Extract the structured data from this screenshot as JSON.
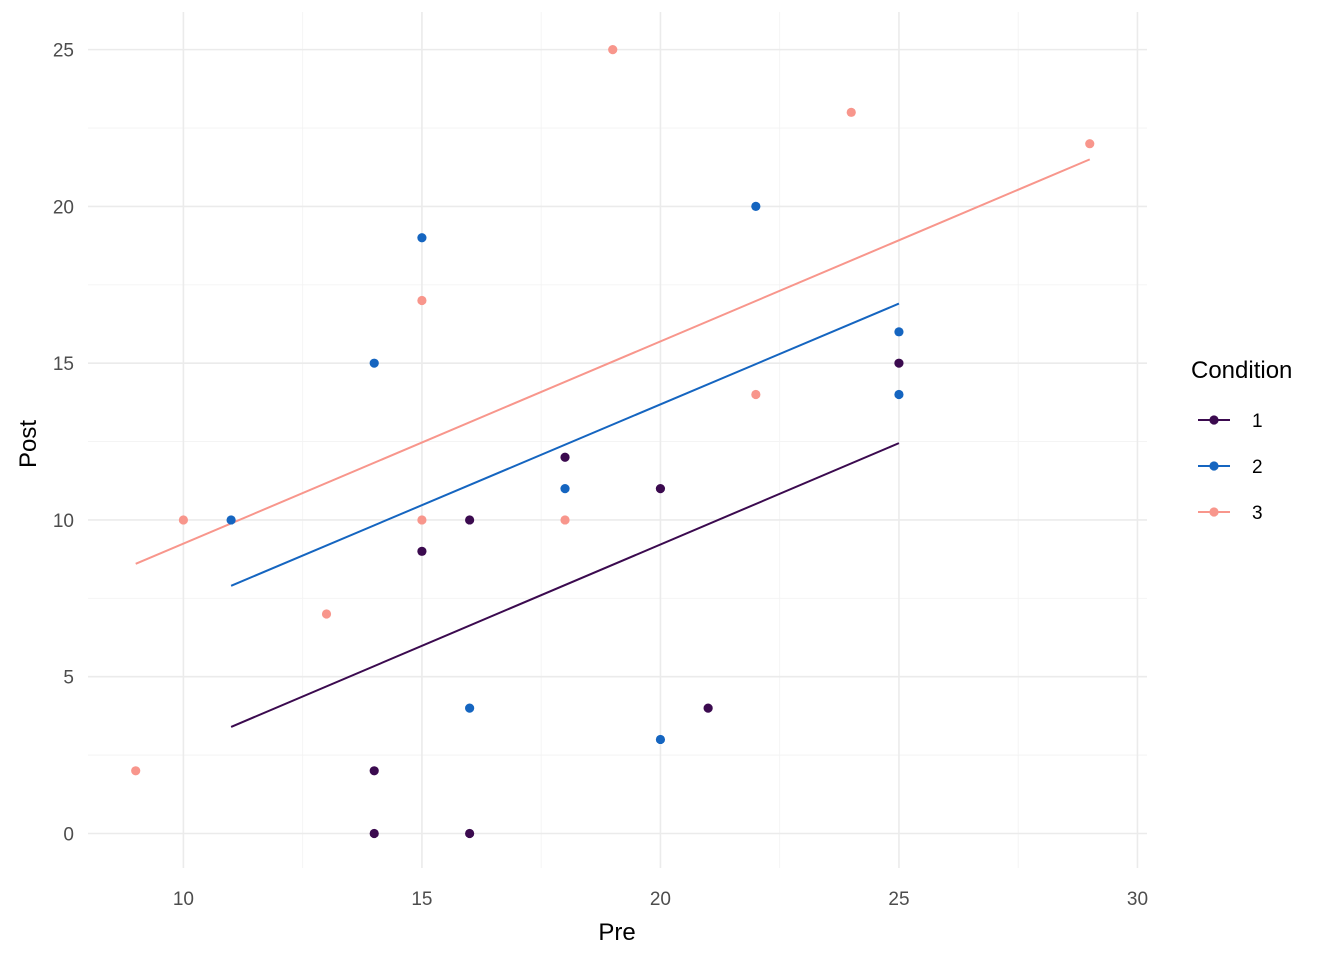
{
  "chart_data": {
    "type": "scatter",
    "xlabel": "Pre",
    "ylabel": "Post",
    "xlim": [
      8,
      30.2
    ],
    "ylim": [
      -1.1,
      26.2
    ],
    "x_ticks": [
      10,
      15,
      20,
      25,
      30
    ],
    "y_ticks": [
      0,
      5,
      10,
      15,
      20,
      25
    ],
    "x_tick_labels": [
      "10",
      "15",
      "20",
      "25",
      "30"
    ],
    "y_tick_labels": [
      "0",
      "5",
      "10",
      "15",
      "20",
      "25"
    ],
    "grid": true,
    "legend_placement": "right",
    "legend_title": "Condition",
    "series": [
      {
        "name": "1",
        "color": "#3b0a4f",
        "points": [
          [
            14,
            2
          ],
          [
            14,
            0
          ],
          [
            15,
            9
          ],
          [
            16,
            10
          ],
          [
            16,
            0
          ],
          [
            18,
            12
          ],
          [
            20,
            11
          ],
          [
            21,
            4
          ],
          [
            25,
            15
          ]
        ],
        "fit_line": [
          [
            11,
            3.4
          ],
          [
            25,
            12.45
          ]
        ]
      },
      {
        "name": "2",
        "color": "#1565c0",
        "points": [
          [
            11,
            10
          ],
          [
            14,
            15
          ],
          [
            15,
            19
          ],
          [
            16,
            4
          ],
          [
            18,
            11
          ],
          [
            20,
            3
          ],
          [
            22,
            20
          ],
          [
            25,
            16
          ],
          [
            25,
            14
          ]
        ],
        "fit_line": [
          [
            11,
            7.9
          ],
          [
            25,
            16.9
          ]
        ]
      },
      {
        "name": "3",
        "color": "#f8968c",
        "points": [
          [
            9,
            2
          ],
          [
            10,
            10
          ],
          [
            13,
            7
          ],
          [
            15,
            17
          ],
          [
            15,
            10
          ],
          [
            18,
            10
          ],
          [
            19,
            25
          ],
          [
            22,
            14
          ],
          [
            24,
            23
          ],
          [
            29,
            22
          ]
        ],
        "fit_line": [
          [
            9,
            8.6
          ],
          [
            29,
            21.5
          ]
        ]
      }
    ]
  }
}
